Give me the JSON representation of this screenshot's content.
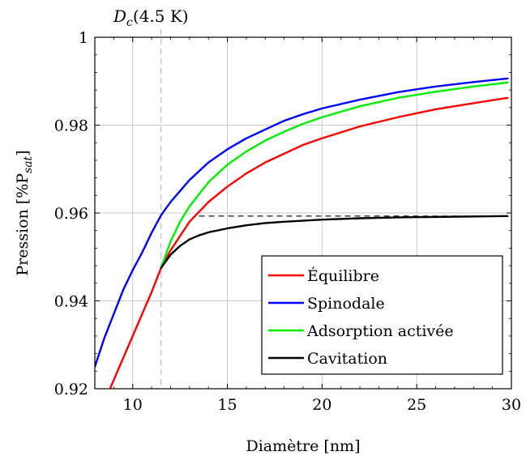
{
  "chart_data": {
    "type": "line",
    "xlabel": "Diamètre [nm]",
    "ylabel": "Pression [%P",
    "ylabel_sub": "sat",
    "ylabel_close": "]",
    "xlim": [
      8,
      30
    ],
    "ylim": [
      0.92,
      1.0
    ],
    "xticks": [
      10,
      15,
      20,
      25,
      30
    ],
    "xtick_labels": [
      "10",
      "15",
      "20",
      "25",
      "30"
    ],
    "yticks": [
      0.92,
      0.94,
      0.96,
      0.98,
      1.0
    ],
    "ytick_labels": [
      "0.92",
      "0.94",
      "0.96",
      "0.98",
      "1"
    ],
    "grid": true,
    "legend_position": "bottom-right",
    "annotation": {
      "label_main": "D",
      "label_sub": "c",
      "label_rest": "(4.5 K)",
      "x": 11.5
    },
    "reference_line": {
      "from": [
        13.5,
        0.9593
      ],
      "to": [
        29.8,
        0.9593
      ]
    },
    "series": [
      {
        "name": "Équilibre",
        "color": "#ff0000",
        "x": [
          8.8,
          9.5,
          10,
          10.5,
          11,
          11.5,
          12,
          13,
          14,
          15,
          16,
          17,
          18,
          19,
          20,
          22,
          24,
          26,
          28,
          29.8
        ],
        "y": [
          0.92,
          0.927,
          0.932,
          0.937,
          0.942,
          0.9475,
          0.9515,
          0.958,
          0.9625,
          0.966,
          0.969,
          0.9715,
          0.9735,
          0.9755,
          0.977,
          0.9797,
          0.9818,
          0.9836,
          0.985,
          0.9862
        ]
      },
      {
        "name": "Spinodale",
        "color": "#0000ff",
        "x": [
          8,
          8.5,
          9,
          9.5,
          10,
          10.5,
          11,
          11.5,
          12,
          13,
          14,
          15,
          16,
          17,
          18,
          19,
          20,
          22,
          24,
          26,
          28,
          29.8
        ],
        "y": [
          0.925,
          0.9315,
          0.937,
          0.9425,
          0.947,
          0.951,
          0.9555,
          0.9595,
          0.9625,
          0.9675,
          0.9715,
          0.9745,
          0.977,
          0.979,
          0.981,
          0.9825,
          0.9838,
          0.9858,
          0.9875,
          0.9888,
          0.9898,
          0.9906
        ]
      },
      {
        "name": "Adsorption activée",
        "color": "#00ee00",
        "x": [
          11.5,
          12,
          12.5,
          13,
          14,
          15,
          16,
          17,
          18,
          19,
          20,
          22,
          24,
          26,
          28,
          29.8
        ],
        "y": [
          0.9475,
          0.9535,
          0.958,
          0.9615,
          0.967,
          0.971,
          0.974,
          0.9765,
          0.9785,
          0.9803,
          0.9818,
          0.9843,
          0.9862,
          0.9876,
          0.9888,
          0.9897
        ]
      },
      {
        "name": "Cavitation",
        "color": "#000000",
        "x": [
          11.5,
          12,
          12.5,
          13,
          13.5,
          14,
          15,
          16,
          17,
          18,
          20,
          22,
          24,
          26,
          28,
          29.8
        ],
        "y": [
          0.9475,
          0.9505,
          0.9525,
          0.954,
          0.9549,
          0.9556,
          0.9565,
          0.9572,
          0.9577,
          0.958,
          0.9585,
          0.9588,
          0.959,
          0.9591,
          0.9592,
          0.9593
        ]
      }
    ]
  }
}
